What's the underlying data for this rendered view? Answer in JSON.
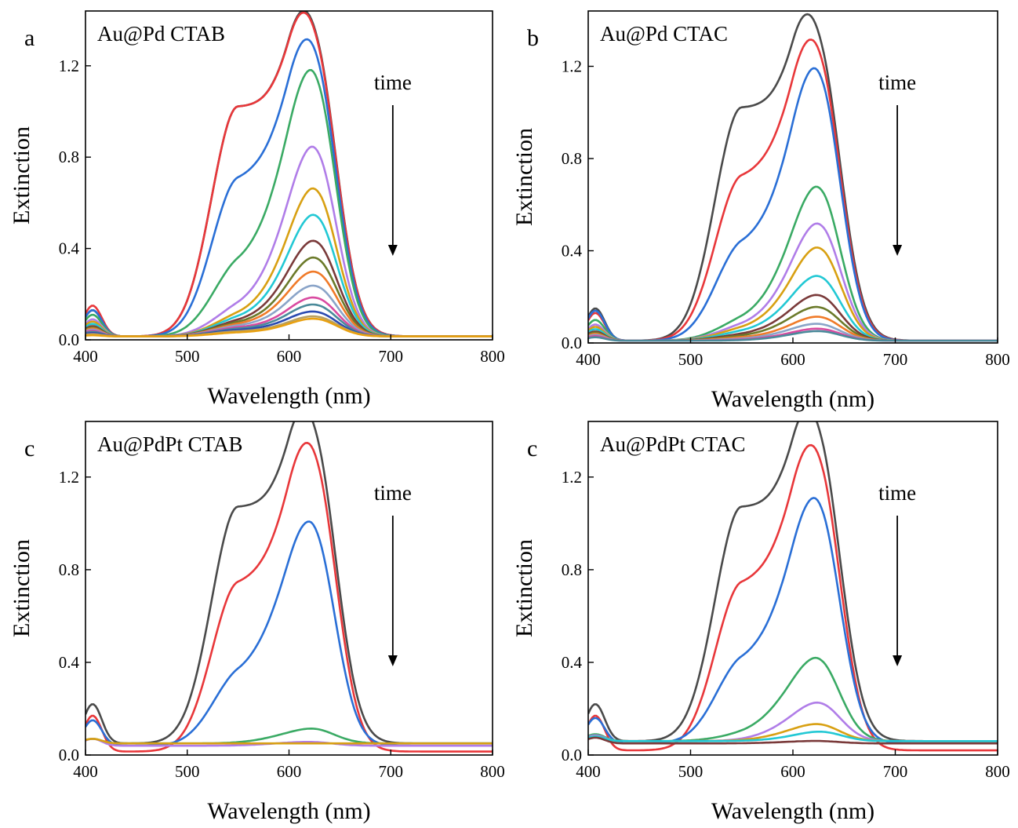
{
  "chart_data": [
    {
      "type": "line",
      "panel_letter": "a",
      "title": "Au@Pd CTAB",
      "xlabel": "Wavelength (nm)",
      "ylabel": "Extinction",
      "annotation": "time",
      "xlim": [
        400,
        800
      ],
      "ylim": [
        0,
        1.44
      ],
      "xticks": [
        "400",
        "500",
        "600",
        "700",
        "800"
      ],
      "yticks": [
        "0.0",
        "0.4",
        "0.8",
        "1.2"
      ],
      "series": [
        {
          "color": "#4a4a4a",
          "values": [
            0.13,
            1.02,
            0.96,
            1.28,
            0.015
          ]
        },
        {
          "color": "#e8373a",
          "values": [
            0.15,
            1.02,
            0.96,
            1.27,
            0.015
          ]
        },
        {
          "color": "#2a6fd6",
          "values": [
            0.13,
            0.68,
            0.84,
            1.2,
            0.015
          ]
        },
        {
          "color": "#3aaa64",
          "values": [
            0.11,
            0.3,
            0.61,
            1.11,
            0.015
          ]
        },
        {
          "color": "#b07de8",
          "values": [
            0.09,
            0.12,
            0.36,
            0.81,
            0.015
          ]
        },
        {
          "color": "#d8a012",
          "values": [
            0.08,
            0.09,
            0.26,
            0.64,
            0.015
          ]
        },
        {
          "color": "#22c8d4",
          "values": [
            0.07,
            0.08,
            0.21,
            0.53,
            0.015
          ]
        },
        {
          "color": "#7a3a3a",
          "values": [
            0.06,
            0.07,
            0.17,
            0.42,
            0.015
          ]
        },
        {
          "color": "#6b7a2a",
          "values": [
            0.055,
            0.065,
            0.14,
            0.35,
            0.015
          ]
        },
        {
          "color": "#f07a28",
          "values": [
            0.05,
            0.06,
            0.12,
            0.29,
            0.015
          ]
        },
        {
          "color": "#8aa4c8",
          "values": [
            0.045,
            0.055,
            0.1,
            0.23,
            0.015
          ]
        },
        {
          "color": "#d94aa0",
          "values": [
            0.04,
            0.05,
            0.08,
            0.18,
            0.015
          ]
        },
        {
          "color": "#4a8a9a",
          "values": [
            0.035,
            0.045,
            0.07,
            0.15,
            0.015
          ]
        },
        {
          "color": "#2a4ab0",
          "values": [
            0.03,
            0.04,
            0.06,
            0.12,
            0.015
          ]
        },
        {
          "color": "#b8a060",
          "values": [
            0.025,
            0.035,
            0.05,
            0.1,
            0.015
          ]
        },
        {
          "color": "#e8a010",
          "values": [
            0.02,
            0.03,
            0.045,
            0.09,
            0.015
          ]
        }
      ]
    },
    {
      "type": "line",
      "panel_letter": "b",
      "title": "Au@Pd CTAC",
      "xlabel": "Wavelength (nm)",
      "ylabel": "Extinction",
      "annotation": "time",
      "xlim": [
        400,
        800
      ],
      "ylim": [
        0,
        1.44
      ],
      "xticks": [
        "400",
        "500",
        "600",
        "700",
        "800"
      ],
      "yticks": [
        "0.0",
        "0.4",
        "0.8",
        "1.2"
      ],
      "series": [
        {
          "color": "#4a4a4a",
          "values": [
            0.15,
            1.02,
            0.96,
            1.26,
            0.01
          ]
        },
        {
          "color": "#e8373a",
          "values": [
            0.13,
            0.7,
            0.84,
            1.2,
            0.01
          ]
        },
        {
          "color": "#2a6fd6",
          "values": [
            0.14,
            0.4,
            0.63,
            1.12,
            0.01
          ]
        },
        {
          "color": "#3aaa64",
          "values": [
            0.1,
            0.08,
            0.28,
            0.65,
            0.01
          ]
        },
        {
          "color": "#b07de8",
          "values": [
            0.08,
            0.06,
            0.2,
            0.5,
            0.01
          ]
        },
        {
          "color": "#d8a012",
          "values": [
            0.07,
            0.05,
            0.16,
            0.4,
            0.01
          ]
        },
        {
          "color": "#22c8d4",
          "values": [
            0.06,
            0.04,
            0.12,
            0.28,
            0.01
          ]
        },
        {
          "color": "#7a3a3a",
          "values": [
            0.05,
            0.03,
            0.09,
            0.2,
            0.01
          ]
        },
        {
          "color": "#6b7a2a",
          "values": [
            0.045,
            0.025,
            0.07,
            0.15,
            0.01
          ]
        },
        {
          "color": "#f07a28",
          "values": [
            0.04,
            0.02,
            0.05,
            0.11,
            0.01
          ]
        },
        {
          "color": "#8aa4c8",
          "values": [
            0.035,
            0.015,
            0.04,
            0.08,
            0.01
          ]
        },
        {
          "color": "#d94aa0",
          "values": [
            0.03,
            0.012,
            0.03,
            0.06,
            0.01
          ]
        },
        {
          "color": "#4a8a9a",
          "values": [
            0.025,
            0.01,
            0.025,
            0.05,
            0.01
          ]
        }
      ]
    },
    {
      "type": "line",
      "panel_letter": "c",
      "title": "Au@PdPt CTAB",
      "xlabel": "Wavelength (nm)",
      "ylabel": "Extinction",
      "annotation": "time",
      "xlim": [
        400,
        800
      ],
      "ylim": [
        0,
        1.44
      ],
      "xticks": [
        "400",
        "500",
        "600",
        "700",
        "800"
      ],
      "yticks": [
        "0.0",
        "0.4",
        "0.8",
        "1.2"
      ],
      "series": [
        {
          "color": "#4a4a4a",
          "values": [
            0.22,
            1.07,
            1.02,
            1.33,
            0.05
          ]
        },
        {
          "color": "#e8373a",
          "values": [
            0.17,
            0.72,
            0.86,
            1.23,
            0.015
          ]
        },
        {
          "color": "#2a6fd6",
          "values": [
            0.15,
            0.32,
            0.6,
            0.93,
            0.04
          ]
        },
        {
          "color": "#3aaa64",
          "values": [
            0.07,
            0.05,
            0.08,
            0.11,
            0.05
          ]
        },
        {
          "color": "#b07de8",
          "values": [
            0.07,
            0.04,
            0.05,
            0.055,
            0.04
          ]
        },
        {
          "color": "#d8a012",
          "values": [
            0.07,
            0.035,
            0.04,
            0.045,
            0.05
          ]
        }
      ]
    },
    {
      "type": "line",
      "panel_letter": "c",
      "title": "Au@PdPt CTAC",
      "xlabel": "Wavelength (nm)",
      "ylabel": "Extinction",
      "annotation": "time",
      "xlim": [
        400,
        800
      ],
      "ylim": [
        0,
        1.44
      ],
      "xticks": [
        "400",
        "500",
        "600",
        "700",
        "800"
      ],
      "yticks": [
        "0.0",
        "0.4",
        "0.8",
        "1.2"
      ],
      "series": [
        {
          "color": "#4a4a4a",
          "values": [
            0.22,
            1.07,
            1.02,
            1.33,
            0.06
          ]
        },
        {
          "color": "#e8373a",
          "values": [
            0.17,
            0.72,
            0.86,
            1.22,
            0.02
          ]
        },
        {
          "color": "#2a6fd6",
          "values": [
            0.16,
            0.38,
            0.62,
            1.04,
            0.05
          ]
        },
        {
          "color": "#3aaa64",
          "values": [
            0.09,
            0.08,
            0.22,
            0.4,
            0.06
          ]
        },
        {
          "color": "#b07de8",
          "values": [
            0.085,
            0.06,
            0.12,
            0.22,
            0.06
          ]
        },
        {
          "color": "#d8a012",
          "values": [
            0.08,
            0.05,
            0.09,
            0.13,
            0.06
          ]
        },
        {
          "color": "#22c8d4",
          "values": [
            0.08,
            0.05,
            0.07,
            0.1,
            0.06
          ]
        },
        {
          "color": "#7a3a3a",
          "values": [
            0.075,
            0.045,
            0.055,
            0.06,
            0.05
          ]
        }
      ]
    }
  ]
}
